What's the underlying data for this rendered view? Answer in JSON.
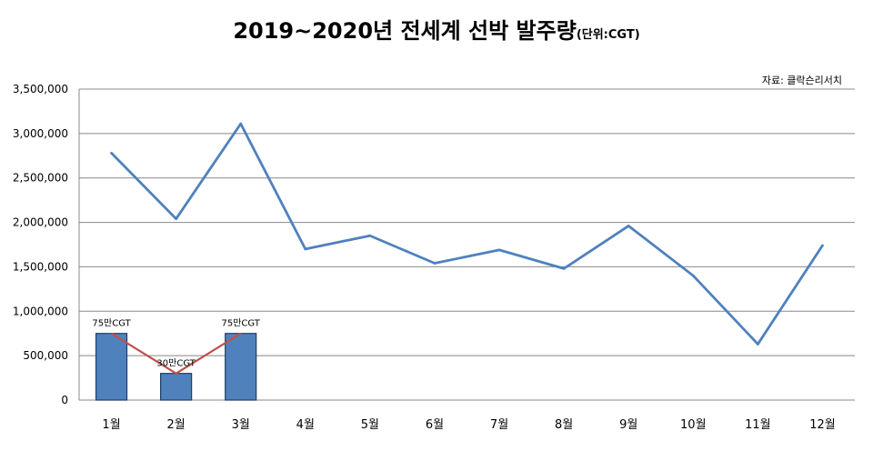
{
  "title": "2019~2020년 전세계 선박 발주량",
  "title_unit": "(단위:CGT)",
  "source": "자료: 클락슨리서치",
  "chart_data": {
    "type": "line",
    "categories": [
      "1월",
      "2월",
      "3월",
      "4월",
      "5월",
      "6월",
      "7월",
      "8월",
      "9월",
      "10월",
      "11월",
      "12월"
    ],
    "ylim": [
      0,
      3500000
    ],
    "yticks": [
      0,
      500000,
      1000000,
      1500000,
      2000000,
      2500000,
      3000000,
      3500000
    ],
    "ytick_labels": [
      "0",
      "500,000",
      "1,000,000",
      "1,500,000",
      "2,000,000",
      "2,500,000",
      "3,000,000",
      "3,500,000"
    ],
    "grid": true,
    "series": [
      {
        "values": [
          2780000,
          2040000,
          3110000,
          1700000,
          1850000,
          1540000,
          1690000,
          1480000,
          1960000,
          1400000,
          630000,
          1740000
        ],
        "color": "#4f81bd"
      }
    ],
    "bars": {
      "categories": [
        "1월",
        "2월",
        "3월"
      ],
      "values": [
        750000,
        300000,
        750000
      ],
      "labels": [
        "75만CGT",
        "30만CGT",
        "75만CGT"
      ],
      "color": "#4f81bd",
      "connector_color": "#c0504d"
    }
  }
}
